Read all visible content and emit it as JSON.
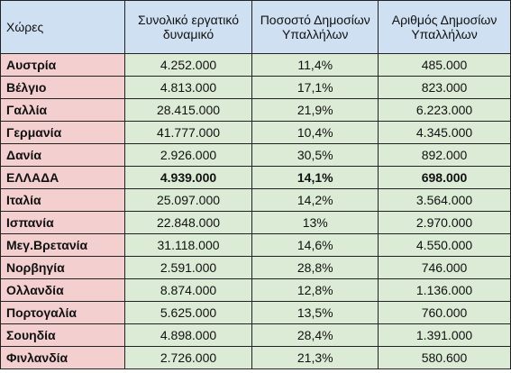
{
  "headers": {
    "country": "Χώρες",
    "workforce": "Συνολικό εργατικό δυναμικό",
    "percent": "Ποσοστό Δημοσίων Υπαλλήλων",
    "count": "Αριθμός Δημοσίων Υπαλλήλων"
  },
  "rows": [
    {
      "country": "Αυστρία",
      "workforce": "4.252.000",
      "percent": "11,4%",
      "count": "485.000"
    },
    {
      "country": "Βέλγιο",
      "workforce": "4.813.000",
      "percent": "17,1%",
      "count": "823.000"
    },
    {
      "country": "Γαλλία",
      "workforce": "28.415.000",
      "percent": "21,9%",
      "count": "6.223.000"
    },
    {
      "country": "Γερμανία",
      "workforce": "41.777.000",
      "percent": "10,4%",
      "count": "4.345.000"
    },
    {
      "country": "Δανία",
      "workforce": "2.926.000",
      "percent": "30,5%",
      "count": "892.000"
    },
    {
      "country": "ΕΛΛΑΔΑ",
      "workforce": "4.939.000",
      "percent": "14,1%",
      "count": "698.000"
    },
    {
      "country": "Ιταλία",
      "workforce": "25.097.000",
      "percent": "14,2%",
      "count": "3.564.000"
    },
    {
      "country": "Ισπανία",
      "workforce": "22.848.000",
      "percent": "13%",
      "count": "2.970.000"
    },
    {
      "country": "Μεγ.Βρετανία",
      "workforce": "31.118.000",
      "percent": "14,6%",
      "count": "4.550.000"
    },
    {
      "country": "Νορβηγία",
      "workforce": "2.591.000",
      "percent": "28,8%",
      "count": "746.000"
    },
    {
      "country": "Ολλανδία",
      "workforce": "8.874.000",
      "percent": "12,8%",
      "count": "1.136.000"
    },
    {
      "country": "Πορτογαλία",
      "workforce": "5.625.000",
      "percent": "13,5%",
      "count": "760.000"
    },
    {
      "country": "Σουηδία",
      "workforce": "4.898.000",
      "percent": "28,4%",
      "count": "1.391.000"
    },
    {
      "country": "Φινλανδία",
      "workforce": "2.726.000",
      "percent": "21,3%",
      "count": "580.600"
    }
  ]
}
